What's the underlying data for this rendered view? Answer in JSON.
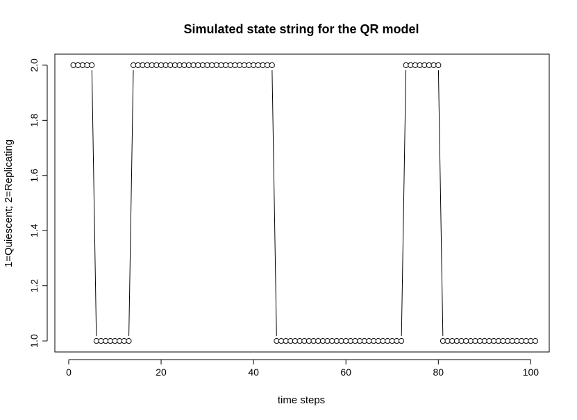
{
  "chart_data": {
    "type": "line",
    "title": "Simulated state string for the QR model",
    "xlabel": "time steps",
    "ylabel": "1=Quiescent; 2=Replicating",
    "xlim": [
      -3,
      104
    ],
    "ylim": [
      0.96,
      2.04
    ],
    "xticks": [
      0,
      20,
      40,
      60,
      80,
      100
    ],
    "yticks": [
      1.0,
      1.2,
      1.4,
      1.6,
      1.8,
      2.0
    ],
    "ytick_labels": [
      "1.0",
      "1.2",
      "1.4",
      "1.6",
      "1.8",
      "2.0"
    ],
    "grid": false,
    "legend": "none",
    "series": [
      {
        "marker": "open-circle",
        "line": "connecting-segments",
        "x": [
          1,
          2,
          3,
          4,
          5,
          6,
          7,
          8,
          9,
          10,
          11,
          12,
          13,
          14,
          15,
          16,
          17,
          18,
          19,
          20,
          21,
          22,
          23,
          24,
          25,
          26,
          27,
          28,
          29,
          30,
          31,
          32,
          33,
          34,
          35,
          36,
          37,
          38,
          39,
          40,
          41,
          42,
          43,
          44,
          45,
          46,
          47,
          48,
          49,
          50,
          51,
          52,
          53,
          54,
          55,
          56,
          57,
          58,
          59,
          60,
          61,
          62,
          63,
          64,
          65,
          66,
          67,
          68,
          69,
          70,
          71,
          72,
          73,
          74,
          75,
          76,
          77,
          78,
          79,
          80,
          81,
          82,
          83,
          84,
          85,
          86,
          87,
          88,
          89,
          90,
          91,
          92,
          93,
          94,
          95,
          96,
          97,
          98,
          99,
          100,
          101
        ],
        "y": [
          2,
          2,
          2,
          2,
          2,
          1,
          1,
          1,
          1,
          1,
          1,
          1,
          1,
          2,
          2,
          2,
          2,
          2,
          2,
          2,
          2,
          2,
          2,
          2,
          2,
          2,
          2,
          2,
          2,
          2,
          2,
          2,
          2,
          2,
          2,
          2,
          2,
          2,
          2,
          2,
          2,
          2,
          2,
          2,
          1,
          1,
          1,
          1,
          1,
          1,
          1,
          1,
          1,
          1,
          1,
          1,
          1,
          1,
          1,
          1,
          1,
          1,
          1,
          1,
          1,
          1,
          1,
          1,
          1,
          1,
          1,
          1,
          2,
          2,
          2,
          2,
          2,
          2,
          2,
          2,
          1,
          1,
          1,
          1,
          1,
          1,
          1,
          1,
          1,
          1,
          1,
          1,
          1,
          1,
          1,
          1,
          1,
          1,
          1,
          1,
          1
        ]
      }
    ]
  }
}
